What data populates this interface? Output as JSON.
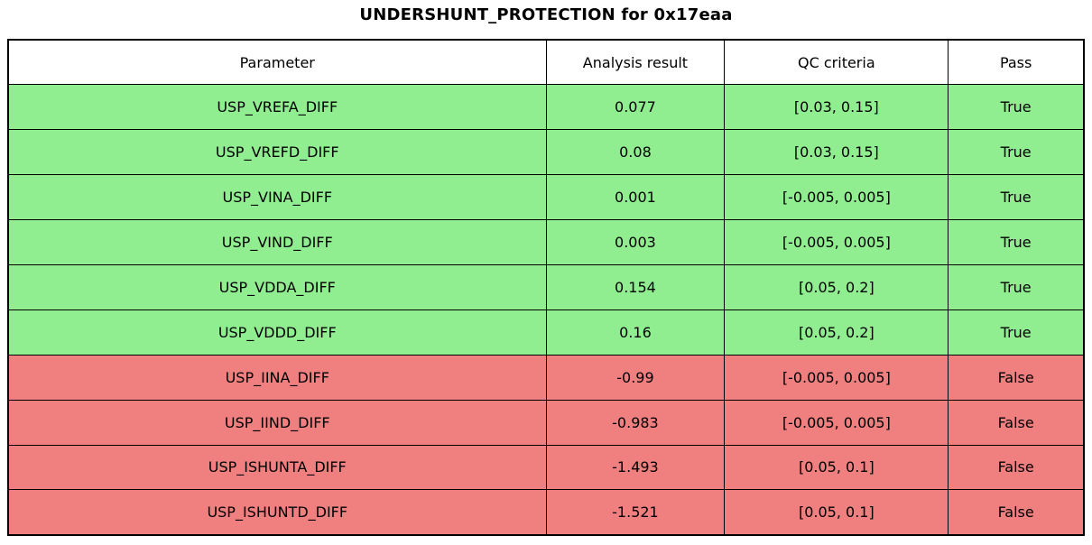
{
  "title": "UNDERSHUNT_PROTECTION for 0x17eaa",
  "colors": {
    "pass_row": "#90ee90",
    "fail_row": "#f08080",
    "border": "#000000",
    "header_bg": "#ffffff",
    "text": "#000000"
  },
  "chart_data": {
    "type": "table",
    "title": "UNDERSHUNT_PROTECTION for 0x17eaa",
    "columns": [
      "Parameter",
      "Analysis result",
      "QC criteria",
      "Pass"
    ],
    "rows": [
      {
        "parameter": "USP_VREFA_DIFF",
        "analysis_result": "0.077",
        "qc_criteria": "[0.03, 0.15]",
        "pass": "True"
      },
      {
        "parameter": "USP_VREFD_DIFF",
        "analysis_result": "0.08",
        "qc_criteria": "[0.03, 0.15]",
        "pass": "True"
      },
      {
        "parameter": "USP_VINA_DIFF",
        "analysis_result": "0.001",
        "qc_criteria": "[-0.005, 0.005]",
        "pass": "True"
      },
      {
        "parameter": "USP_VIND_DIFF",
        "analysis_result": "0.003",
        "qc_criteria": "[-0.005, 0.005]",
        "pass": "True"
      },
      {
        "parameter": "USP_VDDA_DIFF",
        "analysis_result": "0.154",
        "qc_criteria": "[0.05, 0.2]",
        "pass": "True"
      },
      {
        "parameter": "USP_VDDD_DIFF",
        "analysis_result": "0.16",
        "qc_criteria": "[0.05, 0.2]",
        "pass": "True"
      },
      {
        "parameter": "USP_IINA_DIFF",
        "analysis_result": "-0.99",
        "qc_criteria": "[-0.005, 0.005]",
        "pass": "False"
      },
      {
        "parameter": "USP_IIND_DIFF",
        "analysis_result": "-0.983",
        "qc_criteria": "[-0.005, 0.005]",
        "pass": "False"
      },
      {
        "parameter": "USP_ISHUNTA_DIFF",
        "analysis_result": "-1.493",
        "qc_criteria": "[0.05, 0.1]",
        "pass": "False"
      },
      {
        "parameter": "USP_ISHUNTD_DIFF",
        "analysis_result": "-1.521",
        "qc_criteria": "[0.05, 0.1]",
        "pass": "False"
      }
    ]
  }
}
